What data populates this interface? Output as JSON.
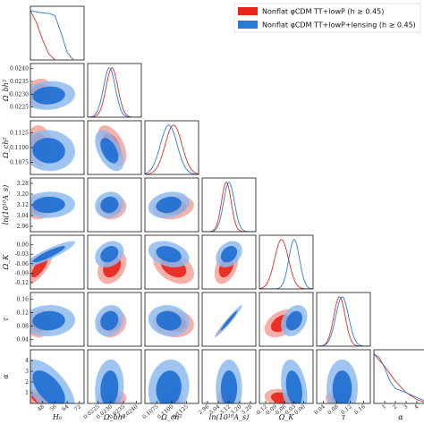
{
  "chart_data": {
    "type": "triangle",
    "colors": {
      "red_dark": "#e8251c",
      "red_light": "#f2a29a",
      "blue_dark": "#1f6fd1",
      "blue_light": "#8fbbef",
      "red_line": "#d9302a",
      "blue_line": "#2a7ad6"
    },
    "legend": [
      {
        "label": "Nonflat φCDM TT+lowP (h ≥ 0.45)",
        "color": "#e8251c"
      },
      {
        "label": "Nonflat φCDM TT+lowP+lensing (h ≥ 0.45)",
        "color": "#2a7ad6"
      }
    ],
    "parameters": [
      {
        "name": "H0",
        "label": "H₀",
        "range": [
          40,
          75
        ],
        "ticks": [
          "48",
          "56",
          "64",
          "72"
        ],
        "tick_values": [
          48,
          56,
          64,
          72
        ]
      },
      {
        "name": "omega_b",
        "label": "Ω_bh²",
        "range": [
          0.0221,
          0.0242
        ],
        "ticks": [
          "0.0225",
          "0.0230",
          "0.0235",
          "0.0240"
        ],
        "tick_values": [
          0.0225,
          0.023,
          0.0235,
          0.024
        ]
      },
      {
        "name": "omega_c",
        "label": "Ω_ch²",
        "range": [
          0.1055,
          0.1145
        ],
        "ticks": [
          "0.1075",
          "0.1100",
          "0.1125"
        ],
        "tick_values": [
          0.1075,
          0.11,
          0.1125
        ]
      },
      {
        "name": "lnAs",
        "label": "ln(10¹⁰A_s)",
        "range": [
          2.92,
          3.32
        ],
        "ticks": [
          "2.96",
          "3.04",
          "3.12",
          "3.20",
          "3.28"
        ],
        "tick_values": [
          2.96,
          3.04,
          3.12,
          3.2,
          3.28
        ]
      },
      {
        "name": "omega_k",
        "label": "Ω_K",
        "range": [
          -0.14,
          0.03
        ],
        "ticks": [
          "-0.12",
          "-0.09",
          "-0.06",
          "-0.03",
          "0.00"
        ],
        "tick_values": [
          -0.12,
          -0.09,
          -0.06,
          -0.03,
          0.0
        ]
      },
      {
        "name": "tau",
        "label": "τ",
        "range": [
          0.02,
          0.18
        ],
        "ticks": [
          "0.04",
          "0.08",
          "0.12",
          "0.16"
        ],
        "tick_values": [
          0.04,
          0.08,
          0.12,
          0.16
        ]
      },
      {
        "name": "alpha",
        "label": "α",
        "range": [
          0,
          5
        ],
        "ticks": [
          "1",
          "2",
          "3",
          "4"
        ],
        "tick_values": [
          1,
          2,
          3,
          4
        ]
      }
    ],
    "series": [
      {
        "name": "Nonflat φCDM TT+lowP (h ≥ 0.45)",
        "means": [
          46,
          0.02305,
          0.1103,
          3.1,
          -0.07,
          0.088,
          0.5
        ],
        "sigmas": [
          3.5,
          0.00023,
          0.0014,
          0.036,
          0.022,
          0.017,
          0.35
        ],
        "marginals": {
          "H0": [
            [
              40,
              1.0
            ],
            [
              44,
              0.75
            ],
            [
              48,
              0.4
            ],
            [
              52,
              0.12
            ],
            [
              56,
              0.0
            ]
          ],
          "alpha": [
            [
              0,
              1.0
            ],
            [
              1,
              0.75
            ],
            [
              2,
              0.45
            ],
            [
              3,
              0.22
            ],
            [
              4,
              0.08
            ],
            [
              5,
              0.0
            ]
          ]
        }
      },
      {
        "name": "Nonflat φCDM TT+lowP+lensing (h ≥ 0.45)",
        "means": [
          52,
          0.02295,
          0.1095,
          3.12,
          -0.03,
          0.096,
          1.4
        ],
        "sigmas": [
          7,
          0.00023,
          0.0014,
          0.04,
          0.017,
          0.019,
          1.1
        ],
        "marginals": {
          "H0": [
            [
              40,
              1.0
            ],
            [
              46,
              0.96
            ],
            [
              52,
              0.94
            ],
            [
              56,
              0.9
            ],
            [
              60,
              0.55
            ],
            [
              64,
              0.15
            ],
            [
              68,
              0.0
            ]
          ],
          "alpha": [
            [
              0,
              1.0
            ],
            [
              0.5,
              0.93
            ],
            [
              1,
              0.72
            ],
            [
              1.5,
              0.45
            ],
            [
              2,
              0.3
            ],
            [
              3,
              0.22
            ],
            [
              4,
              0.12
            ],
            [
              5,
              0.03
            ]
          ]
        }
      }
    ],
    "correlations": {
      "lensing": [
        [
          1,
          0.1,
          -0.05,
          0.05,
          0.9,
          0.05,
          -0.6
        ],
        [
          0.1,
          1,
          -0.5,
          0.1,
          0.25,
          0.15,
          0.1
        ],
        [
          -0.05,
          -0.5,
          1,
          0.2,
          -0.3,
          -0.1,
          0.1
        ],
        [
          0.05,
          0.1,
          0.2,
          1,
          0.3,
          0.97,
          0.0
        ],
        [
          0.9,
          0.25,
          -0.3,
          0.3,
          1,
          0.3,
          -0.3
        ],
        [
          0.05,
          0.15,
          -0.1,
          0.97,
          0.3,
          1,
          0.0
        ],
        [
          -0.6,
          0.1,
          0.1,
          0.0,
          -0.3,
          0.0,
          1
        ]
      ],
      "tt_lowp": [
        [
          1,
          0.1,
          -0.1,
          0.1,
          0.75,
          0.1,
          -0.3
        ],
        [
          0.1,
          1,
          -0.5,
          0.1,
          0.3,
          0.15,
          0.0
        ],
        [
          -0.1,
          -0.5,
          1,
          0.2,
          -0.4,
          -0.1,
          0.0
        ],
        [
          0.1,
          0.1,
          0.2,
          1,
          0.4,
          0.97,
          0.0
        ],
        [
          0.75,
          0.3,
          -0.4,
          0.4,
          1,
          0.4,
          -0.2
        ],
        [
          0.1,
          0.15,
          -0.1,
          0.97,
          0.4,
          1,
          0.0
        ],
        [
          -0.3,
          0.0,
          0.0,
          0.0,
          -0.2,
          0.0,
          1
        ]
      ]
    }
  }
}
